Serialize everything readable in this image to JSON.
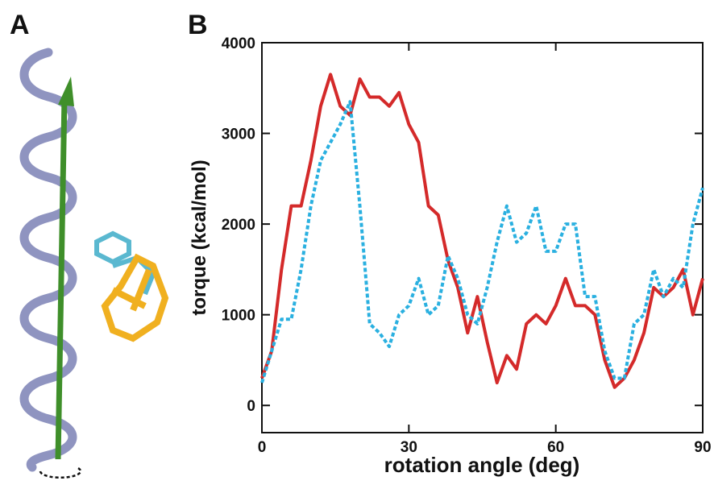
{
  "panel_a": {
    "label": "A"
  },
  "chart_data": {
    "type": "line",
    "panel_label": "B",
    "x_label": "rotation angle (deg)",
    "y_label": "torque (kcal/mol)",
    "xlim": [
      0,
      90
    ],
    "ylim": [
      -300,
      4000
    ],
    "xticks": [
      0,
      30,
      60,
      90
    ],
    "yticks": [
      0,
      1000,
      2000,
      3000,
      4000
    ],
    "x": [
      0,
      2,
      4,
      6,
      8,
      10,
      12,
      14,
      16,
      18,
      20,
      22,
      24,
      26,
      28,
      30,
      32,
      34,
      36,
      38,
      40,
      42,
      44,
      46,
      48,
      50,
      52,
      54,
      56,
      58,
      60,
      62,
      64,
      66,
      68,
      70,
      72,
      74,
      76,
      78,
      80,
      82,
      84,
      86,
      88,
      90
    ],
    "series": [
      {
        "color": "#d42a2a",
        "style": "solid",
        "values": [
          300,
          600,
          1500,
          2200,
          2200,
          2700,
          3300,
          3650,
          3300,
          3200,
          3600,
          3400,
          3400,
          3300,
          3450,
          3100,
          2900,
          2200,
          2100,
          1600,
          1300,
          800,
          1200,
          700,
          250,
          550,
          400,
          900,
          1000,
          900,
          1100,
          1400,
          1100,
          1100,
          1000,
          500,
          200,
          300,
          500,
          800,
          1300,
          1200,
          1300,
          1500,
          1000,
          1400
        ]
      },
      {
        "color": "#2ab0e0",
        "style": "dotted",
        "values": [
          250,
          600,
          950,
          950,
          1500,
          2200,
          2700,
          2900,
          3100,
          3350,
          2200,
          900,
          800,
          650,
          1000,
          1100,
          1400,
          1000,
          1100,
          1650,
          1400,
          1000,
          900,
          1300,
          1800,
          2200,
          1800,
          1900,
          2200,
          1700,
          1700,
          2000,
          2000,
          1200,
          1200,
          600,
          300,
          300,
          900,
          1000,
          1500,
          1200,
          1400,
          1300,
          2000,
          2400
        ]
      }
    ]
  }
}
